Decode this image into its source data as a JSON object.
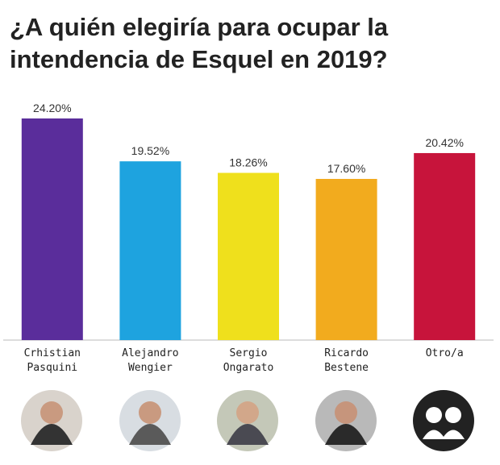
{
  "chart_data": {
    "type": "bar",
    "title": "¿A quién elegiría para ocupar la intendencia de Esquel en 2019?",
    "categories": [
      "Crhistian Pasquini",
      "Alejandro Wengier",
      "Sergio Ongarato",
      "Ricardo Bestene",
      "Otro/a"
    ],
    "values": [
      24.2,
      19.52,
      18.26,
      17.6,
      20.42
    ],
    "value_labels": [
      "24.20%",
      "19.52%",
      "18.26%",
      "17.60%",
      "20.42%"
    ],
    "colors": [
      "#5a2d9b",
      "#1ea3df",
      "#efe01c",
      "#f2ab1e",
      "#c7143b"
    ]
  }
}
